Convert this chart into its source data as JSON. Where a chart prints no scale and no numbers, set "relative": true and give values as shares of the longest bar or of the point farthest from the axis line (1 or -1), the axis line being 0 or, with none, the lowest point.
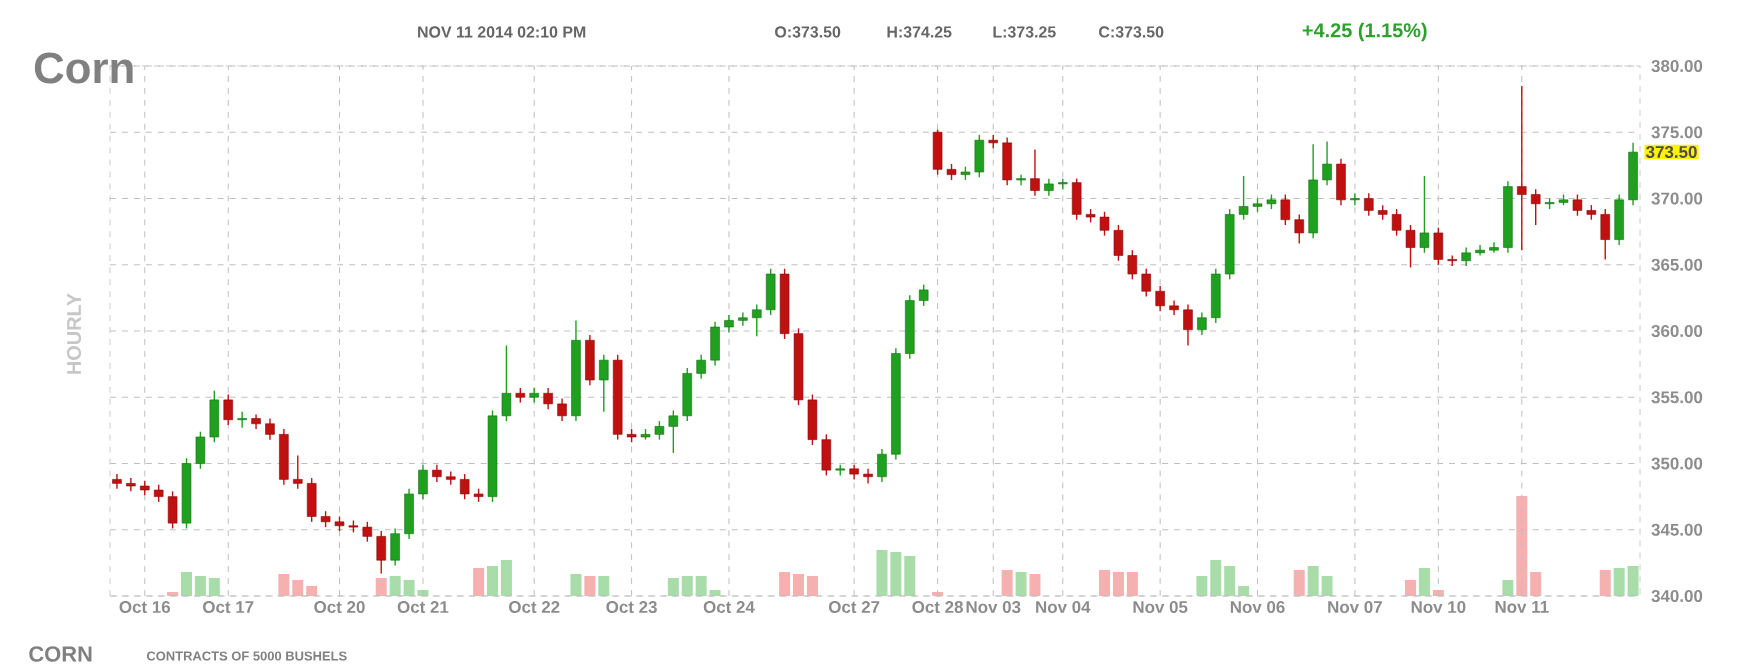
{
  "chart_data": [
    {
      "type": "candlestick",
      "title": "Corn",
      "subtitle": "NOV 11 2014 02:10 PM",
      "ylabel": "HOURLY",
      "annotations": [
        "O:373.50",
        "H:374.25",
        "L:373.25",
        "C:373.50",
        "+4.25 (1.15%)",
        "CORN",
        "CONTRACTS OF 5000 BUSHELS",
        "373.50"
      ],
      "categories": [
        null,
        null,
        "Oct 16",
        null,
        null,
        null,
        null,
        null,
        "Oct 17",
        null,
        null,
        null,
        null,
        null,
        null,
        null,
        "Oct 20",
        null,
        null,
        null,
        null,
        null,
        "Oct 21",
        null,
        null,
        null,
        null,
        null,
        null,
        null,
        "Oct 22",
        null,
        null,
        null,
        null,
        null,
        null,
        "Oct 23",
        null,
        null,
        null,
        null,
        null,
        null,
        "Oct 24",
        null,
        null,
        null,
        null,
        null,
        null,
        null,
        null,
        "Oct 27",
        null,
        null,
        null,
        null,
        null,
        "Oct 28",
        null,
        null,
        null,
        "Nov 03",
        null,
        null,
        null,
        null,
        "Nov 04",
        null,
        null,
        null,
        null,
        null,
        null,
        "Nov 05",
        null,
        null,
        null,
        null,
        null,
        null,
        "Nov 06",
        null,
        null,
        null,
        null,
        null,
        null,
        "Nov 07",
        null,
        null,
        null,
        null,
        null,
        "Nov 10",
        null,
        null,
        null,
        null,
        null,
        "Nov 11",
        null,
        null,
        null,
        null,
        null,
        null,
        null,
        null
      ],
      "ohlc": [
        [
          348.8,
          349.2,
          348.1,
          348.5
        ],
        [
          348.5,
          348.9,
          347.9,
          348.3
        ],
        [
          348.3,
          348.7,
          347.6,
          348
        ],
        [
          348,
          348.4,
          347.1,
          347.5
        ],
        [
          347.5,
          347.9,
          345.1,
          345.5
        ],
        [
          345.5,
          350.4,
          345.1,
          350
        ],
        [
          350,
          352.4,
          349.6,
          352
        ],
        [
          352,
          355.5,
          351.6,
          354.8
        ],
        [
          354.8,
          355.2,
          352.9,
          353.3
        ],
        [
          353.3,
          353.9,
          352.7,
          353.4
        ],
        [
          353.4,
          353.7,
          352.6,
          353
        ],
        [
          353,
          353.4,
          351.8,
          352.2
        ],
        [
          352.2,
          352.6,
          348.4,
          348.8
        ],
        [
          348.8,
          350.6,
          348.1,
          348.5
        ],
        [
          348.5,
          348.9,
          345.6,
          346
        ],
        [
          346,
          346.4,
          345.2,
          345.6
        ],
        [
          345.6,
          346,
          344.9,
          345.3
        ],
        [
          345.3,
          345.7,
          344.8,
          345.2
        ],
        [
          345.2,
          345.6,
          344.1,
          344.5
        ],
        [
          344.5,
          344.9,
          341.7,
          342.7
        ],
        [
          342.7,
          345.1,
          342.3,
          344.7
        ],
        [
          344.7,
          348.1,
          344.3,
          347.7
        ],
        [
          347.7,
          349.9,
          347.3,
          349.5
        ],
        [
          349.5,
          349.9,
          348.6,
          349
        ],
        [
          349,
          349.4,
          348.4,
          348.8
        ],
        [
          348.8,
          349.2,
          347.3,
          347.7
        ],
        [
          347.7,
          348.1,
          347.1,
          347.5
        ],
        [
          347.5,
          354,
          347.1,
          353.6
        ],
        [
          353.6,
          358.9,
          353.2,
          355.3
        ],
        [
          355.3,
          355.7,
          354.6,
          355
        ],
        [
          355,
          355.7,
          354.6,
          355.3
        ],
        [
          355.3,
          355.7,
          354.1,
          354.5
        ],
        [
          354.5,
          354.9,
          353.2,
          353.6
        ],
        [
          353.6,
          360.8,
          353.2,
          359.3
        ],
        [
          359.3,
          359.7,
          355.9,
          356.3
        ],
        [
          356.3,
          358.2,
          353.9,
          357.8
        ],
        [
          357.8,
          358.2,
          351.8,
          352.2
        ],
        [
          352.2,
          352.6,
          351.6,
          352
        ],
        [
          352,
          352.6,
          351.8,
          352.2
        ],
        [
          352.2,
          353.2,
          351.8,
          352.8
        ],
        [
          352.8,
          354,
          350.8,
          353.6
        ],
        [
          353.6,
          357.2,
          353.2,
          356.8
        ],
        [
          356.8,
          358.2,
          356.4,
          357.8
        ],
        [
          357.8,
          360.7,
          357.4,
          360.3
        ],
        [
          360.3,
          361.2,
          359.9,
          360.8
        ],
        [
          360.8,
          361.4,
          360.4,
          361
        ],
        [
          361,
          362,
          359.6,
          361.6
        ],
        [
          361.6,
          364.7,
          361.2,
          364.3
        ],
        [
          364.3,
          364.7,
          359.4,
          359.8
        ],
        [
          359.8,
          360.2,
          354.4,
          354.8
        ],
        [
          354.8,
          355.2,
          351.4,
          351.8
        ],
        [
          351.8,
          352.2,
          349.1,
          349.5
        ],
        [
          349.5,
          349.9,
          349.1,
          349.6
        ],
        [
          349.6,
          349.9,
          348.8,
          349.2
        ],
        [
          349.2,
          349.6,
          348.5,
          349
        ],
        [
          349,
          351.1,
          348.6,
          350.7
        ],
        [
          350.7,
          358.7,
          350.3,
          358.3
        ],
        [
          358.3,
          362.7,
          357.9,
          362.3
        ],
        [
          362.3,
          363.5,
          361.9,
          363.1
        ],
        [
          375,
          375.2,
          371.8,
          372.2
        ],
        [
          372.2,
          372.6,
          371.4,
          371.8
        ],
        [
          371.8,
          372.4,
          371.4,
          372
        ],
        [
          372,
          374.8,
          371.6,
          374.4
        ],
        [
          374.4,
          374.8,
          373.8,
          374.2
        ],
        [
          374.2,
          374.6,
          371,
          371.4
        ],
        [
          371.4,
          371.8,
          371,
          371.5
        ],
        [
          371.5,
          373.7,
          370.2,
          370.6
        ],
        [
          370.6,
          371.5,
          370.2,
          371.1
        ],
        [
          371.1,
          371.5,
          370.7,
          371.2
        ],
        [
          371.2,
          371.5,
          368.4,
          368.8
        ],
        [
          368.8,
          369.2,
          368.2,
          368.6
        ],
        [
          368.6,
          369,
          367.2,
          367.6
        ],
        [
          367.6,
          368,
          365.3,
          365.7
        ],
        [
          365.7,
          366.1,
          363.9,
          364.3
        ],
        [
          364.3,
          364.7,
          362.6,
          363
        ],
        [
          363,
          363.4,
          361.5,
          361.9
        ],
        [
          361.9,
          362.3,
          361.2,
          361.6
        ],
        [
          361.6,
          362,
          358.9,
          360.1
        ],
        [
          360.1,
          361.4,
          359.7,
          361
        ],
        [
          361,
          364.7,
          360.6,
          364.3
        ],
        [
          364.3,
          369.2,
          363.9,
          368.8
        ],
        [
          368.8,
          371.7,
          368.4,
          369.4
        ],
        [
          369.4,
          370,
          369,
          369.6
        ],
        [
          369.6,
          370.3,
          369.2,
          369.9
        ],
        [
          369.9,
          370.3,
          368,
          368.4
        ],
        [
          368.4,
          368.8,
          366.6,
          367.4
        ],
        [
          367.4,
          374.1,
          367,
          371.4
        ],
        [
          371.4,
          374.3,
          371,
          372.6
        ],
        [
          372.6,
          373,
          369.5,
          369.9
        ],
        [
          369.9,
          370.4,
          369.5,
          370
        ],
        [
          370,
          370.4,
          368.7,
          369.1
        ],
        [
          369.1,
          369.5,
          368.4,
          368.8
        ],
        [
          368.8,
          369.2,
          367.2,
          367.6
        ],
        [
          367.6,
          368,
          364.8,
          366.3
        ],
        [
          366.3,
          371.7,
          365.9,
          367.4
        ],
        [
          367.4,
          367.8,
          365,
          365.4
        ],
        [
          365.4,
          365.7,
          364.9,
          365.3
        ],
        [
          365.3,
          366.3,
          364.9,
          365.9
        ],
        [
          365.9,
          366.5,
          365.7,
          366.1
        ],
        [
          366.1,
          366.7,
          365.9,
          366.3
        ],
        [
          366.3,
          371.3,
          365.9,
          370.9
        ],
        [
          370.9,
          378.5,
          366.1,
          370.3
        ],
        [
          370.3,
          370.7,
          368,
          369.6
        ],
        [
          369.6,
          370,
          369.2,
          369.7
        ],
        [
          369.7,
          370.3,
          369.5,
          369.9
        ],
        [
          369.9,
          370.3,
          368.7,
          369.1
        ],
        [
          369.1,
          369.5,
          368.4,
          368.8
        ],
        [
          368.8,
          369.2,
          365.4,
          366.9
        ],
        [
          366.9,
          370.3,
          366.5,
          369.9
        ],
        [
          369.9,
          374.2,
          369.5,
          373.5
        ]
      ],
      "colors": [
        "#c01010",
        "#c01010",
        "#c01010",
        "#c01010",
        "#c01010",
        "#1fa01f",
        "#1fa01f",
        "#1fa01f",
        "#c01010",
        "#1fa01f",
        "#c01010",
        "#c01010",
        "#c01010",
        "#c01010",
        "#c01010",
        "#c01010",
        "#c01010",
        "#c01010",
        "#c01010",
        "#c01010",
        "#1fa01f",
        "#1fa01f",
        "#1fa01f",
        "#c01010",
        "#c01010",
        "#c01010",
        "#c01010",
        "#1fa01f",
        "#1fa01f",
        "#c01010",
        "#1fa01f",
        "#c01010",
        "#c01010",
        "#1fa01f",
        "#c01010",
        "#1fa01f",
        "#c01010",
        "#c01010",
        "#1fa01f",
        "#1fa01f",
        "#1fa01f",
        "#1fa01f",
        "#1fa01f",
        "#1fa01f",
        "#1fa01f",
        "#1fa01f",
        "#1fa01f",
        "#1fa01f",
        "#c01010",
        "#c01010",
        "#c01010",
        "#c01010",
        "#1fa01f",
        "#c01010",
        "#c01010",
        "#1fa01f",
        "#1fa01f",
        "#1fa01f",
        "#1fa01f",
        "#c01010",
        "#c01010",
        "#1fa01f",
        "#1fa01f",
        "#c01010",
        "#c01010",
        "#1fa01f",
        "#c01010",
        "#1fa01f",
        "#1fa01f",
        "#c01010",
        "#c01010",
        "#c01010",
        "#c01010",
        "#c01010",
        "#c01010",
        "#c01010",
        "#c01010",
        "#c01010",
        "#1fa01f",
        "#1fa01f",
        "#1fa01f",
        "#1fa01f",
        "#1fa01f",
        "#1fa01f",
        "#c01010",
        "#c01010",
        "#1fa01f",
        "#1fa01f",
        "#c01010",
        "#1fa01f",
        "#c01010",
        "#c01010",
        "#c01010",
        "#c01010",
        "#1fa01f",
        "#c01010",
        "#c01010",
        "#1fa01f",
        "#1fa01f",
        "#1fa01f",
        "#1fa01f",
        "#c01010",
        "#c01010",
        "#1fa01f",
        "#1fa01f",
        "#c01010",
        "#c01010",
        "#c01010",
        "#1fa01f",
        "#1fa01f"
      ],
      "ylim": [
        340,
        380
      ],
      "yticks": [
        {
          "value": 340,
          "label": "340.00"
        },
        {
          "value": 345,
          "label": "345.00"
        },
        {
          "value": 350,
          "label": "350.00"
        },
        {
          "value": 355,
          "label": "355.00"
        },
        {
          "value": 360,
          "label": "360.00"
        },
        {
          "value": 365,
          "label": "365.00"
        },
        {
          "value": 370,
          "label": "370.00"
        },
        {
          "value": 375,
          "label": "375.00"
        },
        {
          "value": 380,
          "label": "380.00"
        }
      ],
      "grid": true
    },
    {
      "type": "bar",
      "relative": true,
      "categories": [
        null,
        null,
        null,
        null,
        null,
        null,
        null,
        null,
        null,
        null,
        null,
        null,
        null,
        null,
        null,
        null,
        null,
        null,
        null,
        null,
        null,
        null,
        null,
        null,
        null,
        null,
        null,
        null,
        null,
        null,
        null,
        null,
        null,
        null,
        null,
        null,
        null,
        null,
        null,
        null,
        null,
        null,
        null,
        null,
        null,
        null,
        null,
        null,
        null,
        null,
        null,
        null,
        null,
        null,
        null,
        null,
        null,
        null,
        null,
        null,
        null,
        null,
        null,
        null,
        null,
        null,
        null,
        null,
        null,
        null,
        null,
        null,
        null,
        null,
        null,
        null,
        null,
        null,
        null,
        null,
        null,
        null,
        null,
        null,
        null,
        null,
        null,
        null,
        null,
        null,
        null,
        null,
        null,
        null,
        null,
        null,
        null,
        null,
        null,
        null,
        null,
        null,
        null,
        null,
        null,
        null,
        null,
        null,
        null,
        null
      ],
      "values": [
        null,
        null,
        null,
        null,
        0.04,
        0.24,
        0.2,
        0.18,
        null,
        null,
        null,
        null,
        0.22,
        0.16,
        0.1,
        null,
        null,
        null,
        null,
        0.18,
        0.2,
        0.16,
        0.06,
        null,
        null,
        null,
        0.28,
        0.3,
        0.36,
        null,
        null,
        null,
        null,
        0.22,
        0.2,
        0.2,
        null,
        null,
        null,
        null,
        0.18,
        0.2,
        0.2,
        0.06,
        null,
        null,
        null,
        null,
        0.24,
        0.22,
        0.2,
        null,
        null,
        null,
        null,
        0.46,
        0.44,
        0.4,
        null,
        0.04,
        null,
        null,
        null,
        null,
        0.26,
        0.24,
        0.22,
        null,
        null,
        null,
        null,
        0.26,
        0.24,
        0.24,
        null,
        null,
        null,
        null,
        0.2,
        0.36,
        0.3,
        0.1,
        null,
        null,
        null,
        0.26,
        0.3,
        0.2,
        null,
        null,
        null,
        null,
        null,
        0.16,
        0.28,
        0.06,
        null,
        null,
        null,
        null,
        0.16,
        1,
        0.24,
        null,
        null,
        null,
        null,
        0.26,
        0.28,
        0.3
      ],
      "colors": [
        null,
        null,
        null,
        null,
        "#f6b0b0",
        "#a8dca8",
        "#a8dca8",
        "#a8dca8",
        null,
        null,
        null,
        null,
        "#f6b0b0",
        "#f6b0b0",
        "#f6b0b0",
        null,
        null,
        null,
        null,
        "#f6b0b0",
        "#a8dca8",
        "#a8dca8",
        "#a8dca8",
        null,
        null,
        null,
        "#f6b0b0",
        "#a8dca8",
        "#a8dca8",
        null,
        null,
        null,
        null,
        "#a8dca8",
        "#f6b0b0",
        "#a8dca8",
        null,
        null,
        null,
        null,
        "#a8dca8",
        "#a8dca8",
        "#a8dca8",
        "#a8dca8",
        null,
        null,
        null,
        null,
        "#f6b0b0",
        "#f6b0b0",
        "#f6b0b0",
        null,
        null,
        null,
        null,
        "#a8dca8",
        "#a8dca8",
        "#a8dca8",
        null,
        "#f6b0b0",
        null,
        null,
        null,
        null,
        "#f6b0b0",
        "#a8dca8",
        "#f6b0b0",
        null,
        null,
        null,
        null,
        "#f6b0b0",
        "#f6b0b0",
        "#f6b0b0",
        null,
        null,
        null,
        null,
        "#a8dca8",
        "#a8dca8",
        "#a8dca8",
        "#a8dca8",
        null,
        null,
        null,
        "#f6b0b0",
        "#a8dca8",
        "#a8dca8",
        null,
        null,
        null,
        null,
        null,
        "#f6b0b0",
        "#a8dca8",
        "#f6b0b0",
        null,
        null,
        null,
        null,
        "#a8dca8",
        "#f6b0b0",
        "#f6b0b0",
        null,
        null,
        null,
        null,
        "#f6b0b0",
        "#a8dca8",
        "#a8dca8"
      ]
    }
  ]
}
